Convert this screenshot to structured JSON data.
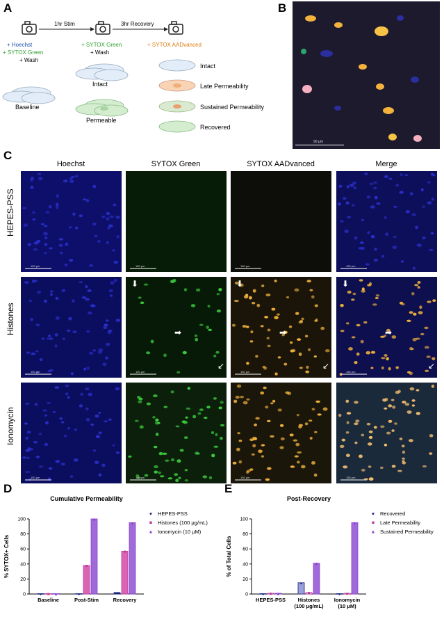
{
  "panels": {
    "A": "A",
    "B": "B",
    "C": "C",
    "D": "D",
    "E": "E"
  },
  "schematic": {
    "arrow1": "1hr Stim",
    "arrow2": "3hr Recovery",
    "step1": [
      "+ Hoechst",
      "+ SYTOX Green",
      "+ Wash"
    ],
    "step2": [
      "+ SYTOX Green",
      "+ Wash"
    ],
    "step3": "+ SYTOX AADvanced",
    "baseline": "Baseline",
    "intact": "Intact",
    "permeable": "Permeable",
    "legend": [
      "Intact",
      "Late Permeability",
      "Sustained Permeability",
      "Recovered"
    ]
  },
  "panelB": {
    "scale": "90 μm"
  },
  "panelC": {
    "columns": [
      "Hoechst",
      "SYTOX Green",
      "SYTOX AADvanced",
      "Merge"
    ],
    "rows": [
      "HEPES-PSS",
      "Histones",
      "Ionomycin"
    ],
    "scale": "150 μm"
  },
  "colors": {
    "hoechst": "#1b1f9e",
    "green": "#3ccc3c",
    "orange": "#f2b23c",
    "hepes": "#1a237e",
    "histones": "#d966b5",
    "ionomycin": "#a06ad8",
    "recovered_bar": "#9aa0d8"
  },
  "chart_data": [
    {
      "type": "bar",
      "title": "Cumulative Permeability",
      "ylabel": "% SYTOX+ Cells",
      "categories": [
        "Baseline",
        "Post-Stim",
        "Recovery"
      ],
      "ylim": [
        0,
        100
      ],
      "yticks": [
        "0",
        "20",
        "40",
        "60",
        "80",
        "100"
      ],
      "legend_position": "right",
      "series": [
        {
          "name": "HEPES-PSS",
          "values": [
            0.5,
            0.5,
            2
          ]
        },
        {
          "name": "Histones (100 μg/mL)",
          "values": [
            0.5,
            38,
            57
          ]
        },
        {
          "name": "Ionomycin (10 μM)",
          "values": [
            0.5,
            100,
            95
          ]
        }
      ]
    },
    {
      "type": "bar",
      "title": "Post-Recovery",
      "ylabel": "% of Total Cells",
      "categories": [
        "HEPES-PSS",
        "Histones\n(100 μg/mL)",
        "Ionomycin\n(10 μM)"
      ],
      "ylim": [
        0,
        100
      ],
      "yticks": [
        "0",
        "20",
        "40",
        "60",
        "80",
        "100"
      ],
      "legend_position": "right",
      "series": [
        {
          "name": "Recovered",
          "values": [
            0.5,
            15,
            0.5
          ]
        },
        {
          "name": "Late Permeability",
          "values": [
            1,
            2,
            1
          ]
        },
        {
          "name": "Sustained Permeability",
          "values": [
            1,
            41,
            95
          ]
        }
      ]
    }
  ]
}
